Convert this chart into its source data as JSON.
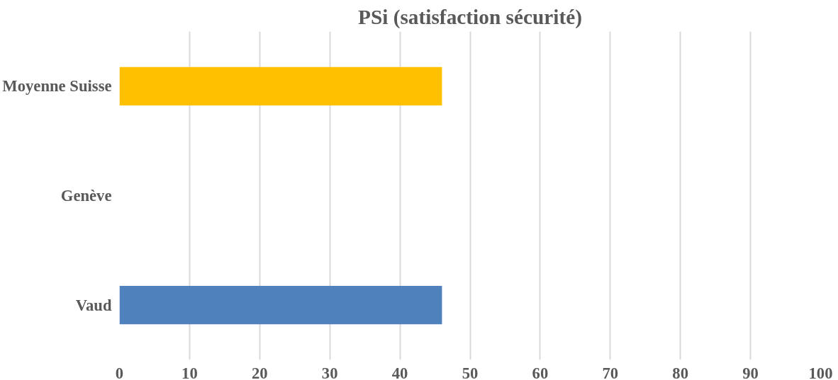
{
  "chart_data": {
    "type": "bar",
    "orientation": "horizontal",
    "title": "PSi (satisfaction sécurité)",
    "categories": [
      "Moyenne Suisse",
      "Genève",
      "Vaud"
    ],
    "values": [
      46,
      null,
      46
    ],
    "colors": [
      "#ffc000",
      "#4f81bd",
      "#4f81bd"
    ],
    "xlim": [
      0,
      100
    ],
    "xticks": [
      0,
      10,
      20,
      30,
      40,
      50,
      60,
      70,
      80,
      90,
      100
    ],
    "grid": "x"
  }
}
